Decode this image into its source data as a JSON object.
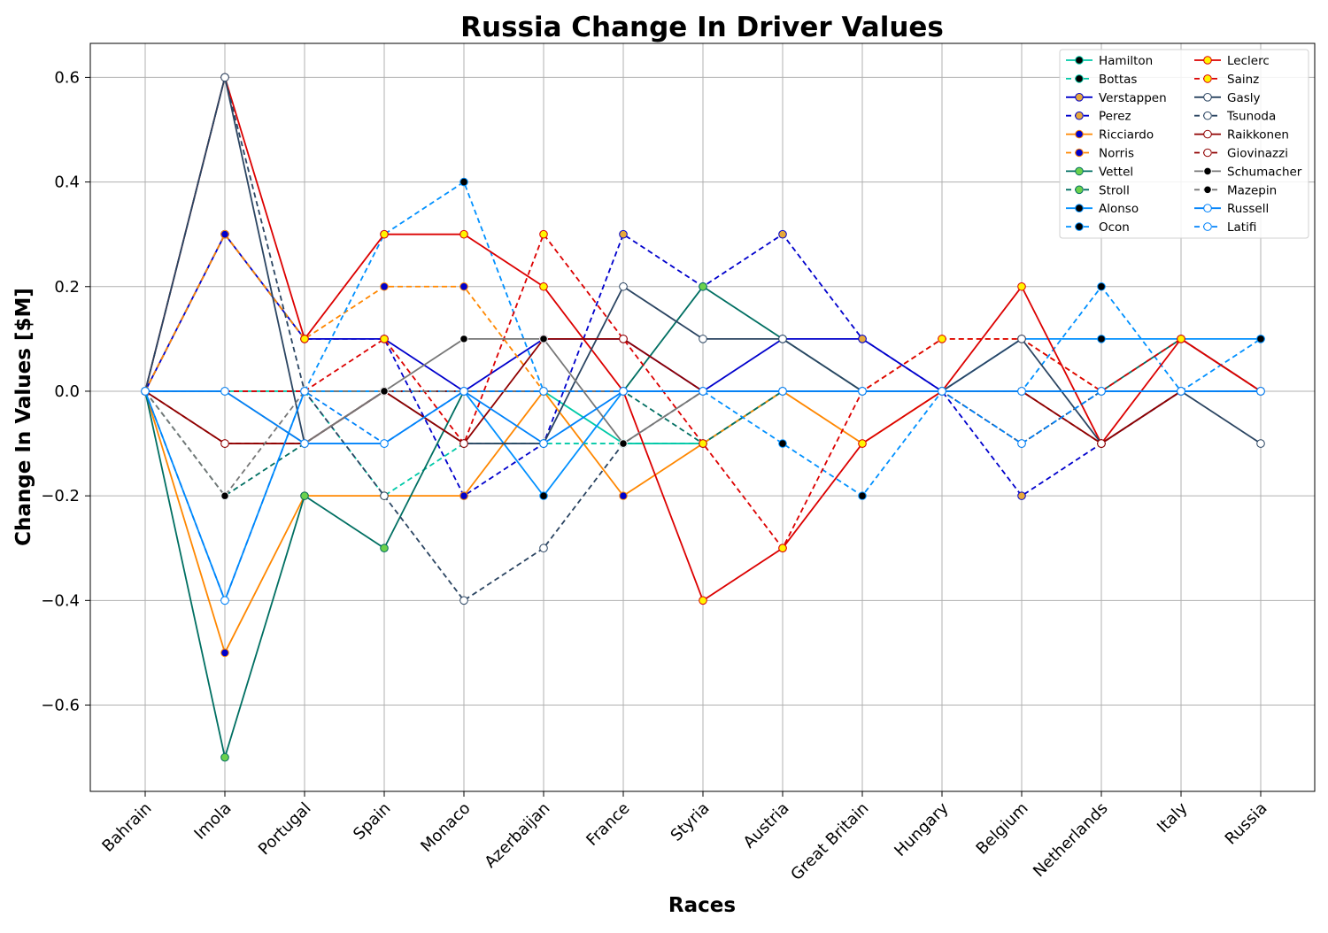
{
  "chart_data": {
    "type": "line",
    "title": "Russia Change In Driver Values",
    "xlabel": "Races",
    "ylabel": "Change In Values [$M]",
    "categories": [
      "Bahrain",
      "Imola",
      "Portugal",
      "Spain",
      "Monaco",
      "Azerbaijan",
      "France",
      "Styria",
      "Austria",
      "Great Britain",
      "Hungary",
      "Belgium",
      "Netherlands",
      "Italy",
      "Russia"
    ],
    "ylim": [
      -0.765,
      0.665
    ],
    "yticks": [
      -0.6,
      -0.4,
      -0.2,
      0.0,
      0.2,
      0.4,
      0.6
    ],
    "ytick_labels": [
      "−0.6",
      "−0.4",
      "−0.2",
      "0.0",
      "0.2",
      "0.4",
      "0.6"
    ],
    "grid": true,
    "legend_position": "top-right",
    "series": [
      {
        "name": "Hamilton",
        "color": "#00c9a7",
        "dash": "solid",
        "marker_fill": "#000000",
        "marker_edge": "#00c9a7",
        "values": [
          0,
          0,
          0,
          0,
          0,
          0,
          -0.1,
          -0.1,
          0,
          0,
          0,
          0,
          0,
          0,
          0
        ]
      },
      {
        "name": "Bottas",
        "color": "#00c9a7",
        "dash": "dashed",
        "marker_fill": "#000000",
        "marker_edge": "#00c9a7",
        "values": [
          0,
          0,
          0,
          -0.2,
          -0.1,
          -0.1,
          -0.1,
          -0.1,
          0,
          0,
          0,
          0,
          0,
          0,
          0
        ]
      },
      {
        "name": "Verstappen",
        "color": "#0000cc",
        "dash": "solid",
        "marker_fill": "#e6a83a",
        "marker_edge": "#0000cc",
        "values": [
          0,
          0.3,
          0.1,
          0.1,
          0,
          0.1,
          0.1,
          0,
          0.1,
          0.1,
          0,
          0,
          0,
          0,
          0
        ]
      },
      {
        "name": "Perez",
        "color": "#0000cc",
        "dash": "dashed",
        "marker_fill": "#e6a83a",
        "marker_edge": "#0000cc",
        "values": [
          0,
          0.3,
          0.1,
          0.1,
          -0.2,
          -0.1,
          0.3,
          0.2,
          0.3,
          0.1,
          0,
          -0.2,
          -0.1,
          0,
          0
        ]
      },
      {
        "name": "Ricciardo",
        "color": "#ff8700",
        "dash": "solid",
        "marker_fill": "#0000cc",
        "marker_edge": "#ff8700",
        "values": [
          0,
          -0.5,
          -0.2,
          -0.2,
          -0.2,
          0,
          -0.2,
          -0.1,
          0,
          -0.1,
          0,
          0,
          0,
          0,
          0
        ]
      },
      {
        "name": "Norris",
        "color": "#ff8700",
        "dash": "dashed",
        "marker_fill": "#0000cc",
        "marker_edge": "#ff8700",
        "values": [
          0,
          0.3,
          0.1,
          0.2,
          0.2,
          0,
          0,
          0,
          0,
          0,
          0.1,
          0.1,
          0,
          0,
          0
        ]
      },
      {
        "name": "Vettel",
        "color": "#006f62",
        "dash": "solid",
        "marker_fill": "#6cd14d",
        "marker_edge": "#006f62",
        "values": [
          0,
          -0.7,
          -0.2,
          -0.3,
          0,
          0,
          0,
          0.2,
          0.1,
          0,
          0,
          0,
          0,
          0.1,
          0
        ]
      },
      {
        "name": "Stroll",
        "color": "#006f62",
        "dash": "dashed",
        "marker_fill": "#6cd14d",
        "marker_edge": "#006f62",
        "values": [
          0,
          -0.2,
          -0.1,
          0,
          0,
          0,
          0,
          -0.1,
          0,
          0,
          0,
          0,
          0,
          0,
          0
        ]
      },
      {
        "name": "Alonso",
        "color": "#0090ff",
        "dash": "solid",
        "marker_fill": "#000000",
        "marker_edge": "#0090ff",
        "values": [
          0,
          -0.4,
          0,
          0,
          0,
          -0.2,
          0,
          0,
          0,
          0,
          0,
          0.1,
          0.1,
          0.1,
          0.1
        ]
      },
      {
        "name": "Ocon",
        "color": "#0090ff",
        "dash": "dashed",
        "marker_fill": "#000000",
        "marker_edge": "#0090ff",
        "values": [
          0,
          0,
          0,
          0.3,
          0.4,
          0,
          0,
          0,
          -0.1,
          -0.2,
          0,
          0,
          0.2,
          0,
          0.1
        ]
      },
      {
        "name": "Leclerc",
        "color": "#dc0000",
        "dash": "solid",
        "marker_fill": "#fff500",
        "marker_edge": "#dc0000",
        "values": [
          0,
          0.6,
          0.1,
          0.3,
          0.3,
          0.2,
          0,
          -0.4,
          -0.3,
          -0.1,
          0,
          0.2,
          -0.1,
          0.1,
          0
        ]
      },
      {
        "name": "Sainz",
        "color": "#dc0000",
        "dash": "dashed",
        "marker_fill": "#fff500",
        "marker_edge": "#dc0000",
        "values": [
          0,
          0,
          0,
          0.1,
          -0.1,
          0.3,
          0.1,
          -0.1,
          -0.3,
          0,
          0.1,
          0.1,
          0,
          0.1,
          0
        ]
      },
      {
        "name": "Gasly",
        "color": "#2b4562",
        "dash": "solid",
        "marker_fill": "#ffffff",
        "marker_edge": "#2b4562",
        "values": [
          0,
          0.6,
          -0.1,
          0,
          -0.1,
          -0.1,
          0.2,
          0.1,
          0.1,
          0,
          0,
          0.1,
          -0.1,
          0,
          -0.1
        ]
      },
      {
        "name": "Tsunoda",
        "color": "#2b4562",
        "dash": "dashed",
        "marker_fill": "#ffffff",
        "marker_edge": "#2b4562",
        "values": [
          0,
          0.6,
          0,
          -0.2,
          -0.4,
          -0.3,
          -0.1,
          0,
          0,
          0,
          0,
          -0.1,
          0,
          0,
          0
        ]
      },
      {
        "name": "Raikkonen",
        "color": "#900000",
        "dash": "solid",
        "marker_fill": "#ffffff",
        "marker_edge": "#900000",
        "values": [
          0,
          -0.1,
          -0.1,
          0,
          -0.1,
          0.1,
          0.1,
          0,
          0,
          0,
          0,
          0,
          -0.1,
          0,
          0
        ]
      },
      {
        "name": "Giovinazzi",
        "color": "#900000",
        "dash": "dashed",
        "marker_fill": "#ffffff",
        "marker_edge": "#900000",
        "values": [
          0,
          -0.1,
          -0.1,
          0,
          0,
          0,
          0,
          0,
          0,
          0,
          0,
          0,
          -0.1,
          0,
          0
        ]
      },
      {
        "name": "Schumacher",
        "color": "#777777",
        "dash": "solid",
        "marker_fill": "#000000",
        "marker_edge": "#ffffff",
        "values": [
          0,
          0,
          -0.1,
          0,
          0.1,
          0.1,
          -0.1,
          0,
          0,
          0,
          0,
          0,
          0,
          0,
          0
        ]
      },
      {
        "name": "Mazepin",
        "color": "#777777",
        "dash": "dashed",
        "marker_fill": "#000000",
        "marker_edge": "#ffffff",
        "values": [
          0,
          -0.2,
          0,
          0,
          0,
          0,
          0,
          0,
          0,
          0,
          0,
          0,
          0,
          0,
          0
        ]
      },
      {
        "name": "Russell",
        "color": "#0082fa",
        "dash": "solid",
        "marker_fill": "#ffffff",
        "marker_edge": "#0082fa",
        "values": [
          0,
          0,
          -0.1,
          -0.1,
          0,
          -0.1,
          0,
          0,
          0,
          0,
          0,
          0,
          0,
          0,
          0
        ]
      },
      {
        "name": "Latifi",
        "color": "#0082fa",
        "dash": "dashed",
        "marker_fill": "#ffffff",
        "marker_edge": "#0082fa",
        "values": [
          0,
          -0.4,
          0,
          -0.1,
          0,
          0,
          0,
          0,
          0,
          0,
          0,
          -0.1,
          0,
          0,
          0
        ]
      }
    ]
  }
}
